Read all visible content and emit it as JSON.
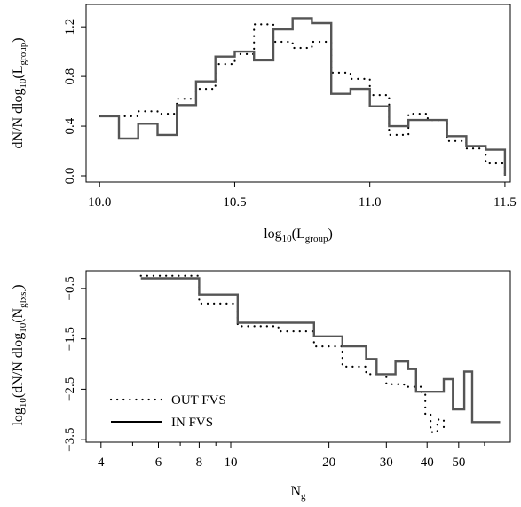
{
  "chart_data": [
    {
      "type": "step",
      "xlabel": {
        "main": "log",
        "sub": "10",
        "rest": "(L",
        "sub2": "group",
        "end": ")"
      },
      "ylabel": {
        "main": "dN/N dlog",
        "sub": "10",
        "rest": "(L",
        "sub2": "group",
        "end": ")"
      },
      "xlim": [
        9.95,
        11.52
      ],
      "ylim": [
        -0.05,
        1.38
      ],
      "xticks": [
        10.0,
        10.5,
        11.0,
        11.5
      ],
      "xtick_labels": [
        "10.0",
        "10.5",
        "11.0",
        "11.5"
      ],
      "yticks": [
        0.0,
        0.4,
        0.8,
        1.2
      ],
      "ytick_labels": [
        "0.0",
        "0.4",
        "0.8",
        "1.2"
      ],
      "bin_edges": [
        10.0,
        10.0714,
        10.1429,
        10.2143,
        10.2857,
        10.3571,
        10.4286,
        10.5,
        10.5714,
        10.6429,
        10.7143,
        10.7857,
        10.8571,
        10.9286,
        11.0,
        11.0714,
        11.1429,
        11.2143,
        11.2857,
        11.3571,
        11.4286,
        11.5
      ],
      "series": [
        {
          "name": "OUT FVS",
          "style": "dotted",
          "values": [
            0.48,
            0.48,
            0.52,
            0.5,
            0.62,
            0.7,
            0.9,
            0.98,
            1.22,
            1.08,
            1.03,
            1.08,
            0.83,
            0.78,
            0.65,
            0.33,
            0.5,
            0.45,
            0.28,
            0.22,
            0.1
          ]
        },
        {
          "name": "IN FVS",
          "style": "solid",
          "values": [
            0.48,
            0.3,
            0.42,
            0.33,
            0.57,
            0.76,
            0.96,
            1.0,
            0.93,
            1.18,
            1.27,
            1.23,
            0.66,
            0.7,
            0.56,
            0.4,
            0.45,
            0.45,
            0.32,
            0.24,
            0.21
          ]
        }
      ],
      "end_drop_to": 0.0
    },
    {
      "type": "step",
      "xscale": "log",
      "xlabel": {
        "main": "N",
        "sub": "g"
      },
      "ylabel": {
        "main": "log",
        "sub": "10",
        "rest": "(dN/N dlog",
        "sub2": "10",
        "rest2": "(N",
        "sub3": "glxs.",
        "end": ")"
      },
      "xlim": [
        3.6,
        72.0
      ],
      "ylim": [
        -3.55,
        -0.15
      ],
      "xticks": [
        4,
        6,
        8,
        10,
        20,
        30,
        40,
        50
      ],
      "xtick_labels": [
        "4",
        "6",
        "8",
        "10",
        "20",
        "30",
        "40",
        "50"
      ],
      "minor_xticks": [
        5,
        7,
        9,
        60
      ],
      "yticks": [
        -0.5,
        -1.5,
        -2.5,
        -3.5
      ],
      "ytick_labels": [
        "−0.5",
        "−1.5",
        "−2.5",
        "−3.5"
      ],
      "series": [
        {
          "name": "OUT FVS",
          "style": "dotted",
          "edges": [
            5.3,
            8.0,
            10.5,
            14.0,
            18.0,
            22.0,
            26.0,
            30.0,
            34.0,
            38.5,
            39.5,
            41.0,
            43.0,
            45.0
          ],
          "values": [
            -0.25,
            -0.8,
            -1.25,
            -1.35,
            -1.65,
            -2.05,
            -2.2,
            -2.4,
            -2.45,
            -2.6,
            -3.0,
            -3.35,
            -3.1
          ],
          "end_drop_to": -3.35
        },
        {
          "name": "IN FVS",
          "style": "solid",
          "edges": [
            5.3,
            8.0,
            10.5,
            14.0,
            18.0,
            22.0,
            26.0,
            28.0,
            32.0,
            35.0,
            37.0,
            41.0,
            45.0,
            48.0,
            52.0,
            55.0,
            67.0
          ],
          "values": [
            -0.3,
            -0.62,
            -1.18,
            -1.18,
            -1.45,
            -1.65,
            -1.9,
            -2.2,
            -1.95,
            -2.1,
            -2.55,
            -2.55,
            -2.3,
            -2.9,
            -2.15,
            -3.15
          ]
        }
      ],
      "legend": {
        "placement": "bottom-left",
        "entries": [
          {
            "label": "OUT FVS",
            "style": "dotted"
          },
          {
            "label": "IN FVS",
            "style": "solid"
          }
        ]
      }
    }
  ]
}
